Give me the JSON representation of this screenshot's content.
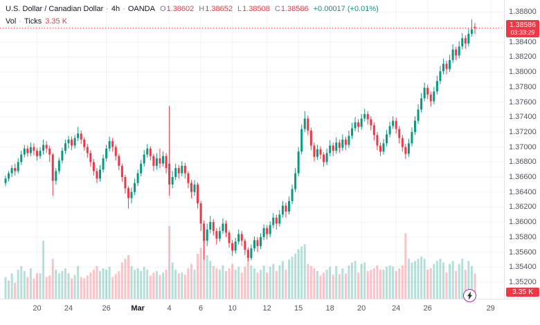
{
  "colors": {
    "up": "#089981",
    "down": "#f23645",
    "vol_up": "rgba(8,153,129,0.30)",
    "vol_down": "rgba(242,54,69,0.30)",
    "grid": "rgba(42,46,57,0.06)",
    "axis_text": "#4f5461",
    "badge_bg": "#f23645",
    "flash_ring": "#9c27b0"
  },
  "legend": {
    "symbol_title": "U.S. Dollar / Canadian Dollar",
    "sep": "·",
    "timeframe": "4h",
    "exchange": "OANDA",
    "o_label": "O",
    "o_value": "1.38602",
    "h_label": "H",
    "h_value": "1.38652",
    "l_label": "L",
    "l_value": "1.38508",
    "c_label": "C",
    "c_value": "1.38586",
    "change": "+0.00017 (+0.01%)",
    "vol_label": "Vol",
    "vol_source": "Ticks",
    "vol_value": "3.35 K"
  },
  "price_axis": {
    "ticks": [
      "1.38800",
      "1.38600",
      "1.38400",
      "1.38200",
      "1.38000",
      "1.37800",
      "1.37600",
      "1.37400",
      "1.37200",
      "1.37000",
      "1.36800",
      "1.36600",
      "1.36400",
      "1.36200",
      "1.36000",
      "1.35800",
      "1.35600",
      "1.35400",
      "1.35200"
    ],
    "last_price_label": "1.38586",
    "countdown": "03:33:29",
    "volume_label": "3.35 K"
  },
  "time_axis": {
    "labels": [
      {
        "text": "20",
        "i": 10
      },
      {
        "text": "24",
        "i": 20
      },
      {
        "text": "26",
        "i": 32
      },
      {
        "text": "Mar",
        "i": 42,
        "major": true
      },
      {
        "text": "4",
        "i": 52
      },
      {
        "text": "6",
        "i": 62
      },
      {
        "text": "10",
        "i": 72
      },
      {
        "text": "12",
        "i": 83
      },
      {
        "text": "15",
        "i": 93
      },
      {
        "text": "18",
        "i": 103
      },
      {
        "text": "20",
        "i": 113
      },
      {
        "text": "24",
        "i": 124
      },
      {
        "text": "26",
        "i": 134
      },
      {
        "text": "29",
        "i": 154
      }
    ]
  },
  "chart_data": {
    "type": "candlestick",
    "symbol": "USD/CAD",
    "interval": "4h",
    "exchange": "OANDA",
    "title": "U.S. Dollar / Canadian Dollar · 4h · OANDA",
    "last_price": 1.38586,
    "last_volume_ticks": "3.35 K",
    "price_range": [
      1.352,
      1.388
    ],
    "grid": true,
    "legend_position": "top-left",
    "p_top": 1.3896,
    "candles_format": [
      "open",
      "high",
      "low",
      "close",
      "relative_volume"
    ],
    "candles": [
      [
        1.3652,
        1.3662,
        1.3648,
        1.3658,
        0.3
      ],
      [
        1.3658,
        1.3668,
        1.3654,
        1.3665,
        0.25
      ],
      [
        1.3665,
        1.3676,
        1.366,
        1.3672,
        0.35
      ],
      [
        1.3672,
        1.3678,
        1.3662,
        1.3668,
        0.22
      ],
      [
        1.3668,
        1.3685,
        1.3665,
        1.368,
        0.4
      ],
      [
        1.368,
        1.3695,
        1.3676,
        1.369,
        0.45
      ],
      [
        1.369,
        1.3703,
        1.3686,
        1.3698,
        0.38
      ],
      [
        1.3698,
        1.3702,
        1.3687,
        1.3692,
        0.3
      ],
      [
        1.3692,
        1.3706,
        1.3688,
        1.37,
        0.42
      ],
      [
        1.37,
        1.3705,
        1.3689,
        1.3695,
        0.28
      ],
      [
        1.3695,
        1.3699,
        1.3682,
        1.3688,
        0.35
      ],
      [
        1.3688,
        1.37,
        1.3684,
        1.3695,
        0.35
      ],
      [
        1.3695,
        1.371,
        1.369,
        1.3703,
        0.8
      ],
      [
        1.3703,
        1.3708,
        1.3692,
        1.3698,
        0.3
      ],
      [
        1.3698,
        1.3702,
        1.368,
        1.369,
        0.32
      ],
      [
        1.369,
        1.3692,
        1.3635,
        1.3655,
        0.55
      ],
      [
        1.3655,
        1.3672,
        1.365,
        1.3668,
        0.4
      ],
      [
        1.3668,
        1.3686,
        1.3664,
        1.3682,
        0.35
      ],
      [
        1.3682,
        1.3699,
        1.3678,
        1.3695,
        0.38
      ],
      [
        1.3695,
        1.371,
        1.3691,
        1.3705,
        0.42
      ],
      [
        1.3705,
        1.3715,
        1.3698,
        1.371,
        0.35
      ],
      [
        1.371,
        1.3714,
        1.3696,
        1.3702,
        0.28
      ],
      [
        1.3702,
        1.3716,
        1.3698,
        1.3712,
        0.33
      ],
      [
        1.3712,
        1.3727,
        1.3708,
        1.3718,
        0.45
      ],
      [
        1.3718,
        1.3722,
        1.3704,
        1.371,
        0.3
      ],
      [
        1.371,
        1.3713,
        1.3695,
        1.37,
        0.28
      ],
      [
        1.37,
        1.3704,
        1.3686,
        1.3692,
        0.32
      ],
      [
        1.3692,
        1.3696,
        1.3674,
        1.368,
        0.36
      ],
      [
        1.368,
        1.3684,
        1.3662,
        1.3668,
        0.4
      ],
      [
        1.3668,
        1.3672,
        1.3652,
        1.3658,
        0.45
      ],
      [
        1.3658,
        1.3676,
        1.3654,
        1.367,
        0.38
      ],
      [
        1.367,
        1.369,
        1.3666,
        1.3685,
        0.42
      ],
      [
        1.3685,
        1.3703,
        1.3681,
        1.3698,
        0.4
      ],
      [
        1.3698,
        1.3714,
        1.3694,
        1.3708,
        0.44
      ],
      [
        1.3708,
        1.3712,
        1.3694,
        1.37,
        0.3
      ],
      [
        1.37,
        1.3703,
        1.3682,
        1.3688,
        0.34
      ],
      [
        1.3688,
        1.3691,
        1.3669,
        1.3675,
        0.38
      ],
      [
        1.3675,
        1.3678,
        1.3654,
        1.366,
        0.5
      ],
      [
        1.366,
        1.3663,
        1.3638,
        1.3645,
        0.55
      ],
      [
        1.3645,
        1.3648,
        1.3618,
        1.3632,
        0.6
      ],
      [
        1.3632,
        1.3646,
        1.3625,
        1.364,
        0.45
      ],
      [
        1.364,
        1.3658,
        1.3636,
        1.3652,
        0.4
      ],
      [
        1.3652,
        1.367,
        1.3648,
        1.3665,
        0.42
      ],
      [
        1.3665,
        1.3683,
        1.3661,
        1.3678,
        0.38
      ],
      [
        1.3678,
        1.3696,
        1.3674,
        1.369,
        0.44
      ],
      [
        1.369,
        1.3704,
        1.3686,
        1.3698,
        0.4
      ],
      [
        1.3698,
        1.3701,
        1.3682,
        1.3688,
        0.32
      ],
      [
        1.3688,
        1.3691,
        1.3668,
        1.3675,
        0.36
      ],
      [
        1.3675,
        1.3692,
        1.367,
        1.3685,
        0.38
      ],
      [
        1.3685,
        1.3698,
        1.3672,
        1.3678,
        0.33
      ],
      [
        1.3678,
        1.3694,
        1.3674,
        1.3688,
        0.36
      ],
      [
        1.3688,
        1.3692,
        1.3665,
        1.3672,
        0.4
      ],
      [
        1.3678,
        1.3755,
        1.3635,
        1.365,
        1.0
      ],
      [
        1.365,
        1.3668,
        1.3645,
        1.366,
        0.5
      ],
      [
        1.366,
        1.3678,
        1.3656,
        1.3672,
        0.4
      ],
      [
        1.3672,
        1.3676,
        1.3658,
        1.3665,
        0.35
      ],
      [
        1.3665,
        1.3681,
        1.3661,
        1.3675,
        0.36
      ],
      [
        1.3675,
        1.3679,
        1.3658,
        1.3665,
        0.33
      ],
      [
        1.3665,
        1.3668,
        1.3645,
        1.3652,
        0.42
      ],
      [
        1.3652,
        1.3656,
        1.3632,
        1.364,
        0.48
      ],
      [
        1.364,
        1.3656,
        1.3635,
        1.365,
        0.4
      ],
      [
        1.365,
        1.3653,
        1.3618,
        1.3625,
        0.62
      ],
      [
        1.3625,
        1.3628,
        1.3588,
        1.3598,
        0.7
      ],
      [
        1.3598,
        1.3602,
        1.355,
        1.3575,
        0.85
      ],
      [
        1.3575,
        1.3598,
        1.3568,
        1.359,
        0.6
      ],
      [
        1.359,
        1.3608,
        1.3585,
        1.36,
        0.52
      ],
      [
        1.36,
        1.3604,
        1.3582,
        1.3588,
        0.45
      ],
      [
        1.3588,
        1.3592,
        1.357,
        1.3578,
        0.42
      ],
      [
        1.3578,
        1.3594,
        1.3574,
        1.3588,
        0.4
      ],
      [
        1.3588,
        1.3605,
        1.3584,
        1.3598,
        0.46
      ],
      [
        1.3598,
        1.3602,
        1.358,
        1.3586,
        0.38
      ],
      [
        1.3586,
        1.3589,
        1.3566,
        1.3572,
        0.42
      ],
      [
        1.3572,
        1.3576,
        1.3555,
        1.3562,
        0.48
      ],
      [
        1.3562,
        1.3579,
        1.3558,
        1.3574,
        0.4
      ],
      [
        1.3574,
        1.359,
        1.357,
        1.3584,
        0.44
      ],
      [
        1.3584,
        1.3588,
        1.3568,
        1.3575,
        0.36
      ],
      [
        1.3575,
        1.3578,
        1.3556,
        1.3563,
        0.44
      ],
      [
        1.3563,
        1.3566,
        1.3548,
        1.3552,
        0.55
      ],
      [
        1.3552,
        1.357,
        1.3549,
        1.3565,
        0.46
      ],
      [
        1.3565,
        1.3581,
        1.3561,
        1.3576,
        0.42
      ],
      [
        1.3576,
        1.358,
        1.356,
        1.3568,
        0.36
      ],
      [
        1.3568,
        1.3585,
        1.3564,
        1.358,
        0.4
      ],
      [
        1.358,
        1.3597,
        1.3576,
        1.3592,
        0.46
      ],
      [
        1.3592,
        1.3596,
        1.3577,
        1.3584,
        0.36
      ],
      [
        1.3584,
        1.3601,
        1.358,
        1.3596,
        0.44
      ],
      [
        1.3596,
        1.3612,
        1.3592,
        1.3606,
        0.48
      ],
      [
        1.3606,
        1.361,
        1.359,
        1.3598,
        0.38
      ],
      [
        1.3598,
        1.3616,
        1.3594,
        1.361,
        0.46
      ],
      [
        1.361,
        1.3628,
        1.3606,
        1.3622,
        0.52
      ],
      [
        1.3622,
        1.3626,
        1.3606,
        1.3614,
        0.4
      ],
      [
        1.3614,
        1.3634,
        1.361,
        1.3628,
        0.54
      ],
      [
        1.3628,
        1.365,
        1.3624,
        1.3644,
        0.58
      ],
      [
        1.3644,
        1.3672,
        1.364,
        1.3665,
        0.62
      ],
      [
        1.3665,
        1.37,
        1.3661,
        1.3694,
        0.68
      ],
      [
        1.3694,
        1.373,
        1.369,
        1.3724,
        0.72
      ],
      [
        1.3724,
        1.3748,
        1.372,
        1.3738,
        0.75
      ],
      [
        1.3738,
        1.3742,
        1.3716,
        1.3722,
        0.48
      ],
      [
        1.3722,
        1.3726,
        1.3696,
        1.3702,
        0.45
      ],
      [
        1.3702,
        1.3706,
        1.3681,
        1.3687,
        0.42
      ],
      [
        1.3687,
        1.3703,
        1.3683,
        1.3697,
        0.38
      ],
      [
        1.3697,
        1.3701,
        1.3684,
        1.369,
        0.32
      ],
      [
        1.369,
        1.3693,
        1.3674,
        1.368,
        0.36
      ],
      [
        1.368,
        1.3698,
        1.3676,
        1.3692,
        0.4
      ],
      [
        1.3692,
        1.3709,
        1.3688,
        1.3702,
        0.44
      ],
      [
        1.3702,
        1.3706,
        1.3688,
        1.3695,
        0.33
      ],
      [
        1.3695,
        1.3713,
        1.3691,
        1.3706,
        0.45
      ],
      [
        1.3706,
        1.371,
        1.3692,
        1.3699,
        0.34
      ],
      [
        1.3699,
        1.3717,
        1.3695,
        1.371,
        0.42
      ],
      [
        1.371,
        1.3714,
        1.3696,
        1.3703,
        0.35
      ],
      [
        1.3703,
        1.3722,
        1.3699,
        1.3715,
        0.46
      ],
      [
        1.3715,
        1.3732,
        1.3711,
        1.3725,
        0.5
      ],
      [
        1.3725,
        1.374,
        1.3721,
        1.3733,
        0.52
      ],
      [
        1.3733,
        1.3737,
        1.372,
        1.3727,
        0.36
      ],
      [
        1.3727,
        1.3744,
        1.3723,
        1.3738,
        0.48
      ],
      [
        1.3738,
        1.3751,
        1.3734,
        1.3744,
        0.5
      ],
      [
        1.3744,
        1.3748,
        1.373,
        1.3737,
        0.38
      ],
      [
        1.3737,
        1.3741,
        1.3722,
        1.3729,
        0.4
      ],
      [
        1.3729,
        1.3733,
        1.3709,
        1.3716,
        0.42
      ],
      [
        1.3716,
        1.372,
        1.3696,
        1.3702,
        0.46
      ],
      [
        1.3702,
        1.3706,
        1.3688,
        1.3694,
        0.4
      ],
      [
        1.3694,
        1.3711,
        1.369,
        1.3705,
        0.4
      ],
      [
        1.3705,
        1.3723,
        1.3701,
        1.3717,
        0.44
      ],
      [
        1.3717,
        1.3734,
        1.3713,
        1.3728,
        0.46
      ],
      [
        1.3728,
        1.3741,
        1.3724,
        1.3735,
        0.44
      ],
      [
        1.3735,
        1.3739,
        1.3718,
        1.3724,
        0.38
      ],
      [
        1.3724,
        1.3728,
        1.3705,
        1.3712,
        0.42
      ],
      [
        1.3712,
        1.3716,
        1.3694,
        1.37,
        0.46
      ],
      [
        1.37,
        1.3704,
        1.3684,
        1.3691,
        0.9
      ],
      [
        1.3691,
        1.3711,
        1.3687,
        1.3705,
        0.55
      ],
      [
        1.3705,
        1.3726,
        1.3701,
        1.372,
        0.5
      ],
      [
        1.372,
        1.3741,
        1.3716,
        1.3735,
        0.52
      ],
      [
        1.3735,
        1.3757,
        1.3731,
        1.375,
        0.55
      ],
      [
        1.375,
        1.3772,
        1.3746,
        1.3765,
        0.58
      ],
      [
        1.3765,
        1.3786,
        1.3761,
        1.3779,
        0.55
      ],
      [
        1.3779,
        1.3783,
        1.3764,
        1.377,
        0.4
      ],
      [
        1.377,
        1.3774,
        1.3754,
        1.3761,
        0.42
      ],
      [
        1.3761,
        1.378,
        1.3757,
        1.3774,
        0.48
      ],
      [
        1.3774,
        1.3795,
        1.377,
        1.3788,
        0.52
      ],
      [
        1.3788,
        1.3808,
        1.3784,
        1.3801,
        0.55
      ],
      [
        1.3801,
        1.3818,
        1.3797,
        1.3811,
        0.5
      ],
      [
        1.3811,
        1.3815,
        1.3797,
        1.3804,
        0.36
      ],
      [
        1.3804,
        1.3823,
        1.38,
        1.3816,
        0.48
      ],
      [
        1.3816,
        1.3837,
        1.3812,
        1.383,
        0.52
      ],
      [
        1.383,
        1.3834,
        1.3816,
        1.3822,
        0.38
      ],
      [
        1.3822,
        1.3841,
        1.3818,
        1.3834,
        0.48
      ],
      [
        1.3834,
        1.3852,
        1.383,
        1.3845,
        0.55
      ],
      [
        1.3845,
        1.3849,
        1.3831,
        1.3838,
        0.4
      ],
      [
        1.3838,
        1.3858,
        1.3834,
        1.3851,
        0.52
      ],
      [
        1.3851,
        1.387,
        1.3847,
        1.38569,
        0.45
      ],
      [
        1.38602,
        1.38652,
        1.38508,
        1.38586,
        0.35
      ]
    ]
  }
}
